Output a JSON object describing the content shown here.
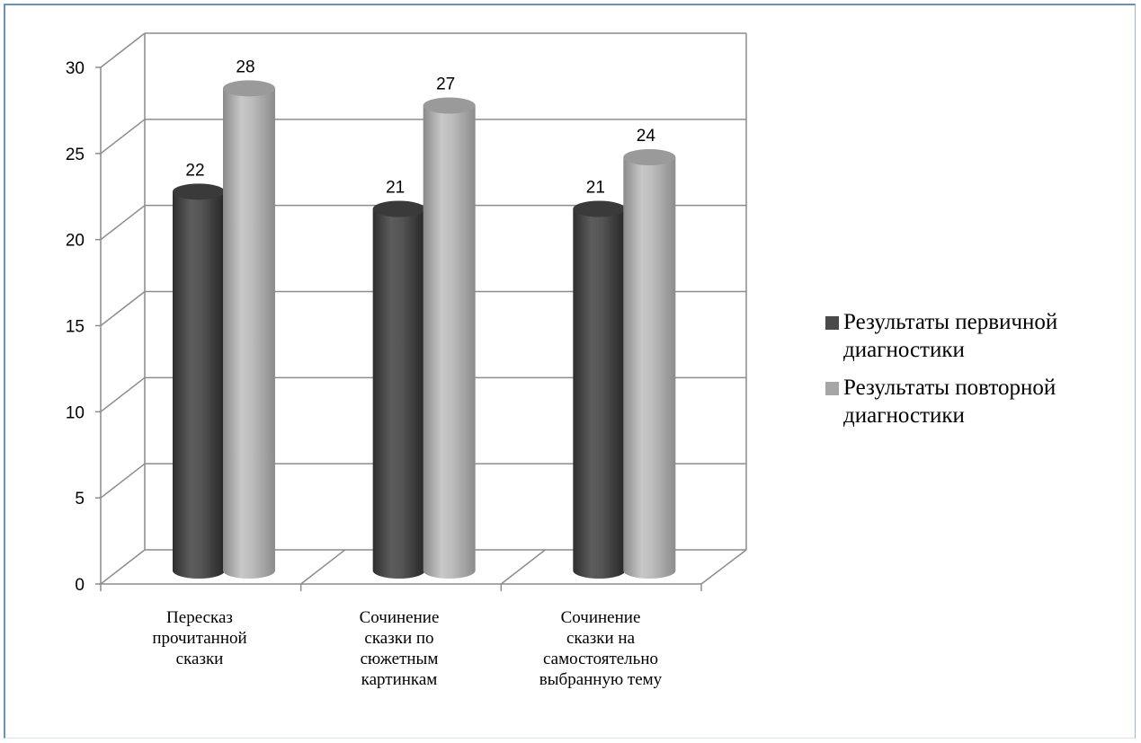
{
  "chart_data": {
    "type": "bar",
    "three_d": true,
    "categories": [
      "Пересказ прочитанной сказки",
      "Сочинение сказки по сюжетным картинкам",
      "Сочинение сказки на самостоятельно выбранную тему"
    ],
    "category_lines": [
      [
        "Пересказ",
        "прочитанной",
        "сказки"
      ],
      [
        "Сочинение",
        "сказки по",
        "сюжетным",
        "картинкам"
      ],
      [
        "Сочинение",
        "сказки на",
        "самостоятельно",
        "выбранную тему"
      ]
    ],
    "series": [
      {
        "name": "Результаты первичной диагностики",
        "values": [
          22,
          21,
          21
        ],
        "color": "#4a4a4a"
      },
      {
        "name": "Результаты повторной диагностики",
        "values": [
          28,
          27,
          24
        ],
        "color": "#a6a6a6"
      }
    ],
    "legend_lines": [
      [
        "Результаты первичной",
        "диагностики"
      ],
      [
        "Результаты повторной",
        "диагностики"
      ]
    ],
    "ylim": [
      0,
      30
    ],
    "yticks": [
      0,
      5,
      10,
      15,
      20,
      25,
      30
    ],
    "grid": true,
    "data_labels": true,
    "legend_position": "right"
  }
}
